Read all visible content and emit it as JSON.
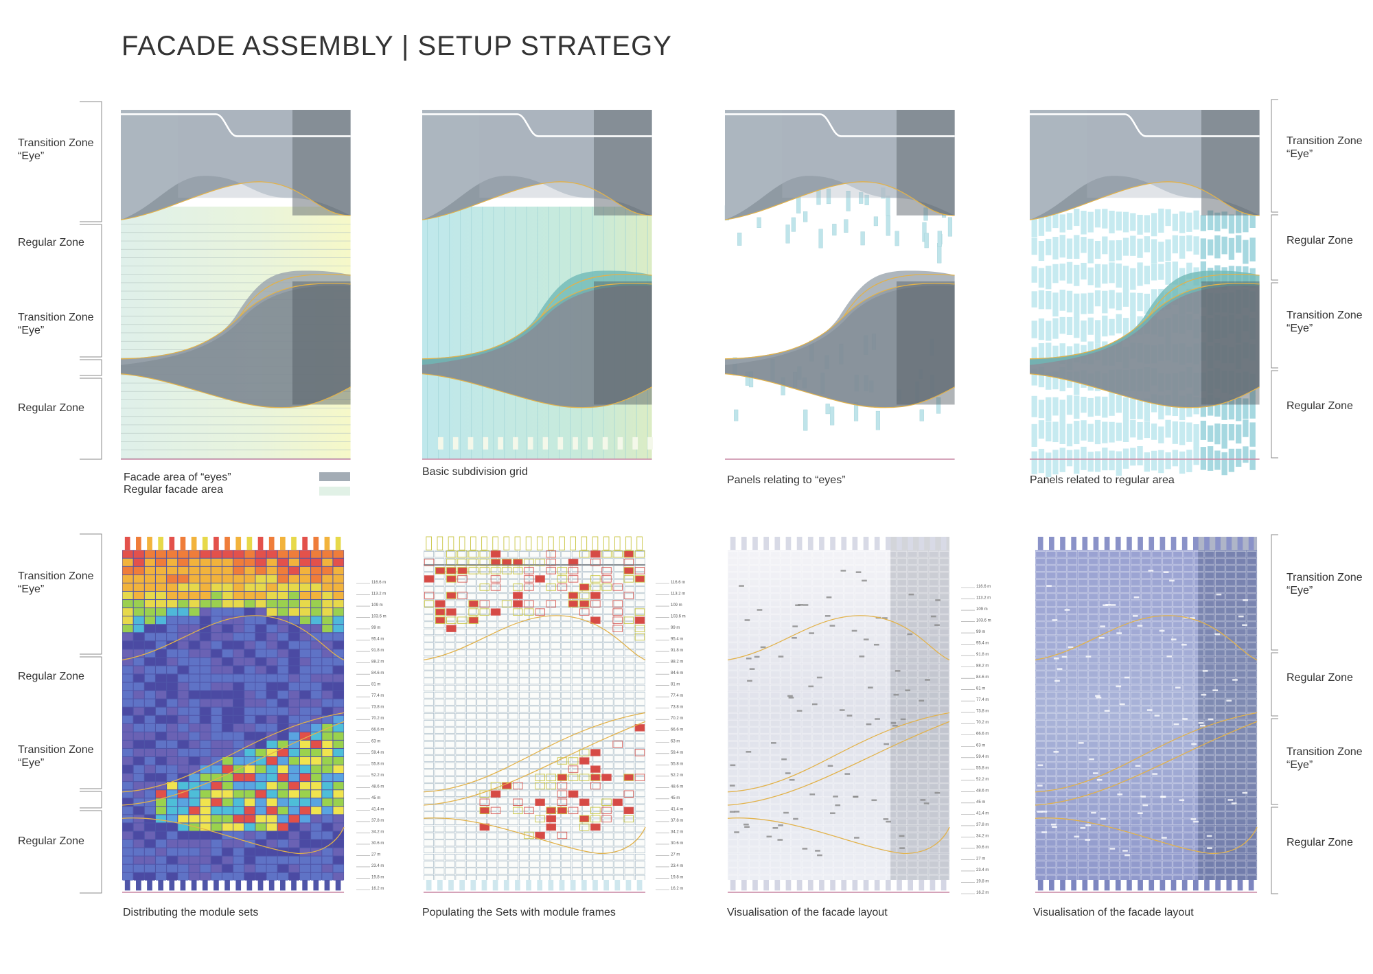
{
  "header": {
    "title": "FACADE ASSEMBLY | SETUP STRATEGY"
  },
  "zones": {
    "left_top": [
      {
        "name": "Transition Zone",
        "sub": "“Eye”"
      },
      {
        "name": "Regular Zone"
      },
      {
        "name": "Transition Zone",
        "sub": "“Eye”"
      },
      {
        "name": "Regular Zone"
      }
    ],
    "right_top": [
      {
        "name": "Transition Zone",
        "sub": "“Eye”"
      },
      {
        "name": "Regular Zone"
      },
      {
        "name": "Transition Zone",
        "sub": "“Eye”"
      },
      {
        "name": "Regular Zone"
      }
    ],
    "left_bottom": [
      {
        "name": "Transition Zone",
        "sub": "“Eye”"
      },
      {
        "name": "Regular Zone"
      },
      {
        "name": "Transition Zone",
        "sub": "“Eye”"
      },
      {
        "name": "Regular Zone"
      }
    ],
    "right_bottom": [
      {
        "name": "Transition Zone",
        "sub": "“Eye”"
      },
      {
        "name": "Regular Zone"
      },
      {
        "name": "Transition Zone",
        "sub": "“Eye”"
      },
      {
        "name": "Regular Zone"
      }
    ]
  },
  "top_panels": [
    {
      "legend": [
        {
          "label": "Facade area of “eyes”"
        },
        {
          "label": "Regular facade area"
        }
      ]
    },
    {
      "caption": "Basic subdivision grid"
    },
    {
      "caption": "Panels relating to “eyes”"
    },
    {
      "caption": "Panels related to regular area"
    }
  ],
  "bottom_panels": [
    {
      "caption": "Distributing the module sets"
    },
    {
      "caption": "Populating the Sets with module frames"
    },
    {
      "caption": "Visualisation of the facade layout"
    },
    {
      "caption": "Visualisation of the facade layout"
    }
  ],
  "elevations": [
    "116.6 m",
    "113.2 m",
    "109 m",
    "103.6 m",
    "99 m",
    "95.4 m",
    "91.8 m",
    "88.2 m",
    "84.6 m",
    "81 m",
    "77.4 m",
    "73.8 m",
    "70.2 m",
    "66.6 m",
    "63 m",
    "59.4 m",
    "55.8 m",
    "52.2 m",
    "48.6 m",
    "45 m",
    "41.4 m",
    "37.8 m",
    "34.2 m",
    "30.6 m",
    "27 m",
    "23.4 m",
    "19.8 m",
    "16.2 m"
  ]
}
